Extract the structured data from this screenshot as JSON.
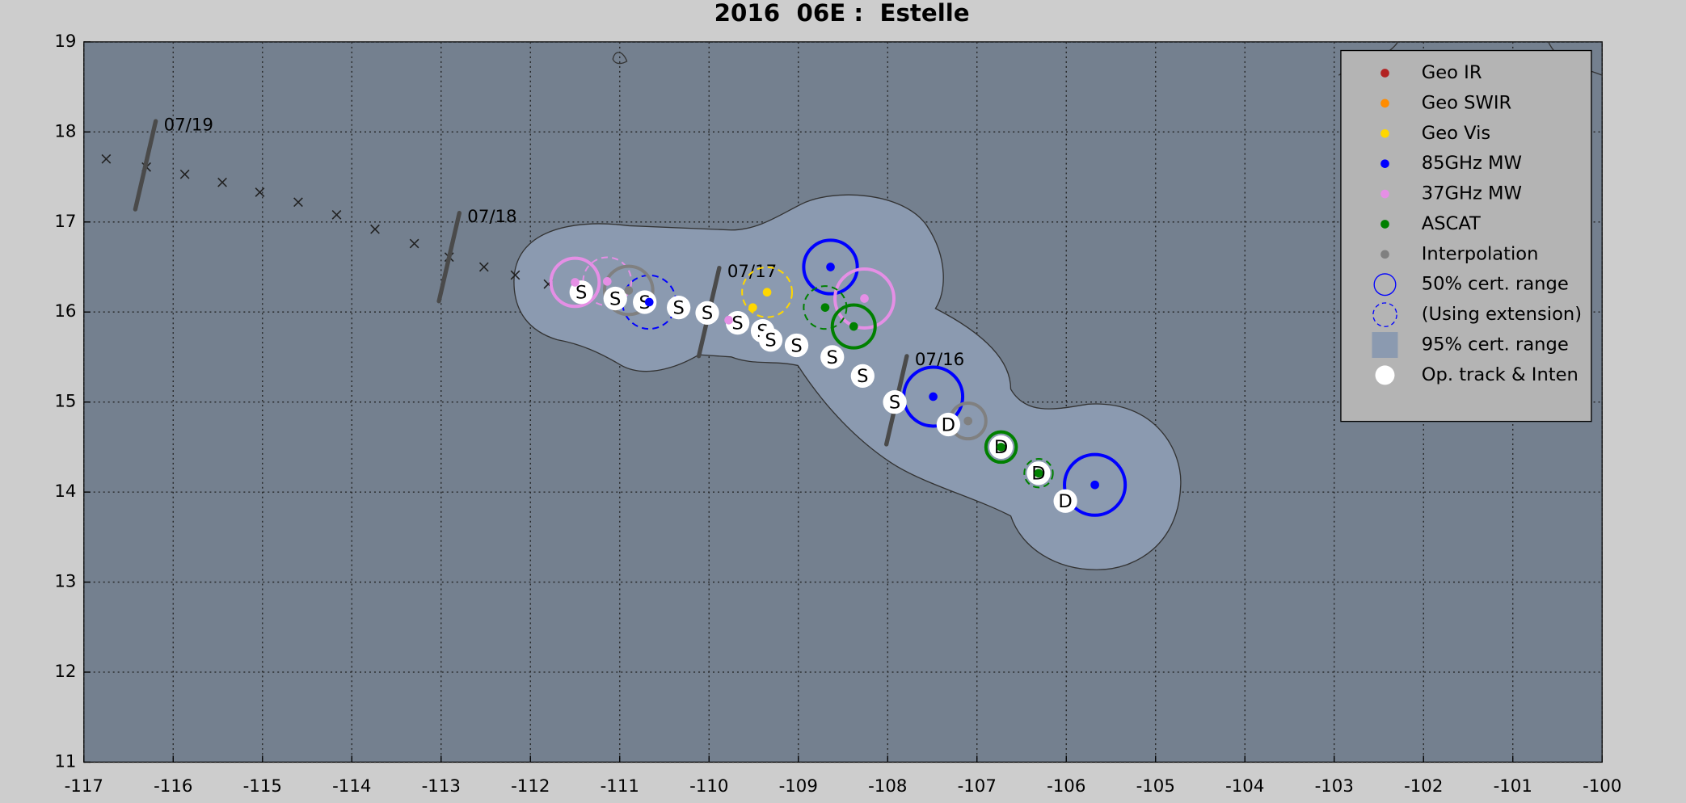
{
  "chart_data": {
    "type": "storm-track",
    "title": "2016  06E :  Estelle",
    "xlim": [
      -117,
      -100
    ],
    "ylim": [
      11,
      19
    ],
    "xticks": [
      -117,
      -116,
      -115,
      -114,
      -113,
      -112,
      -111,
      -110,
      -109,
      -108,
      -107,
      -106,
      -105,
      -104,
      -103,
      -102,
      -101,
      -100
    ],
    "yticks": [
      11,
      12,
      13,
      14,
      15,
      16,
      17,
      18,
      19
    ],
    "grid": true,
    "legend": "upper right",
    "past_track": {
      "lon": [
        -116.75,
        -116.3,
        -115.87,
        -115.45,
        -115.03,
        -114.6,
        -114.17,
        -113.74,
        -113.3,
        -112.91,
        -112.52,
        -112.17,
        -111.8
      ],
      "lat": [
        17.7,
        17.61,
        17.53,
        17.44,
        17.33,
        17.22,
        17.08,
        16.92,
        16.76,
        16.61,
        16.5,
        16.41,
        16.31
      ]
    },
    "date_marks": [
      {
        "label": "07/19",
        "lon": -116.31,
        "lat": 17.63
      },
      {
        "label": "07/18",
        "lon": -112.91,
        "lat": 16.61
      },
      {
        "label": "07/17",
        "lon": -110.0,
        "lat": 16.0
      },
      {
        "label": "07/16",
        "lon": -107.9,
        "lat": 15.02
      }
    ],
    "series": [
      {
        "name": "Geo IR",
        "color": "#b22222",
        "lon": [],
        "lat": [],
        "radius": [],
        "dashed": []
      },
      {
        "name": "Geo SWIR",
        "color": "#ff8c00",
        "lon": [],
        "lat": [],
        "radius": [],
        "dashed": []
      },
      {
        "name": "Geo Vis",
        "color": "#ffd700",
        "lon": [
          -109.35,
          -109.51
        ],
        "lat": [
          16.22,
          16.05
        ],
        "radius": [
          0.28,
          null
        ],
        "dashed": [
          true,
          false
        ]
      },
      {
        "name": "85GHz MW",
        "color": "#0000ff",
        "lon": [
          -108.64,
          -107.49,
          -105.68,
          -110.67
        ],
        "lat": [
          16.5,
          15.06,
          14.08,
          16.11
        ],
        "radius": [
          0.3,
          0.33,
          0.34,
          0.3
        ],
        "dashed": [
          false,
          false,
          false,
          true
        ]
      },
      {
        "name": "37GHz MW",
        "color": "#e58fe5",
        "lon": [
          -111.5,
          -108.26,
          -109.78,
          -111.14
        ],
        "lat": [
          16.33,
          16.15,
          15.91,
          16.34
        ],
        "radius": [
          0.27,
          0.33,
          null,
          0.27
        ],
        "dashed": [
          false,
          false,
          false,
          true
        ]
      },
      {
        "name": "ASCAT",
        "color": "#008000",
        "lon": [
          -108.7,
          -108.38,
          -106.73,
          -106.31
        ],
        "lat": [
          16.05,
          15.84,
          14.5,
          14.21
        ],
        "radius": [
          0.24,
          0.24,
          0.17,
          0.16
        ],
        "dashed": [
          true,
          false,
          false,
          true
        ]
      },
      {
        "name": "Interpolation",
        "color": "#808080",
        "lon": [
          -110.9,
          -107.1
        ],
        "lat": [
          16.24,
          14.79
        ],
        "radius": [
          0.27,
          0.2
        ],
        "dashed": [
          false,
          false
        ]
      }
    ],
    "legend_symbols": [
      {
        "name": "50% cert. range",
        "symbol": "circle",
        "color": "#0000ff"
      },
      {
        "name": "(Using extension)",
        "symbol": "dashed-circle",
        "color": "#0000ff"
      },
      {
        "name": "95% cert. range",
        "symbol": "square",
        "color": "#8b9ab0"
      }
    ],
    "op_track": {
      "name": "Op. track & Inten",
      "color": "#ffffff",
      "lon": [
        -111.43,
        -111.05,
        -110.72,
        -110.34,
        -110.02,
        -109.68,
        -109.4,
        -109.31,
        -109.02,
        -108.62,
        -108.28,
        -107.92,
        -107.32,
        -106.73,
        -106.31,
        -106.01
      ],
      "lat": [
        16.22,
        16.15,
        16.11,
        16.05,
        15.99,
        15.88,
        15.79,
        15.69,
        15.63,
        15.5,
        15.29,
        15.0,
        14.75,
        14.5,
        14.21,
        13.9
      ],
      "intensity": [
        "S",
        "S",
        "S",
        "S",
        "S",
        "S",
        "S",
        "S",
        "S",
        "S",
        "S",
        "S",
        "D",
        "D",
        "D",
        "D"
      ]
    }
  }
}
